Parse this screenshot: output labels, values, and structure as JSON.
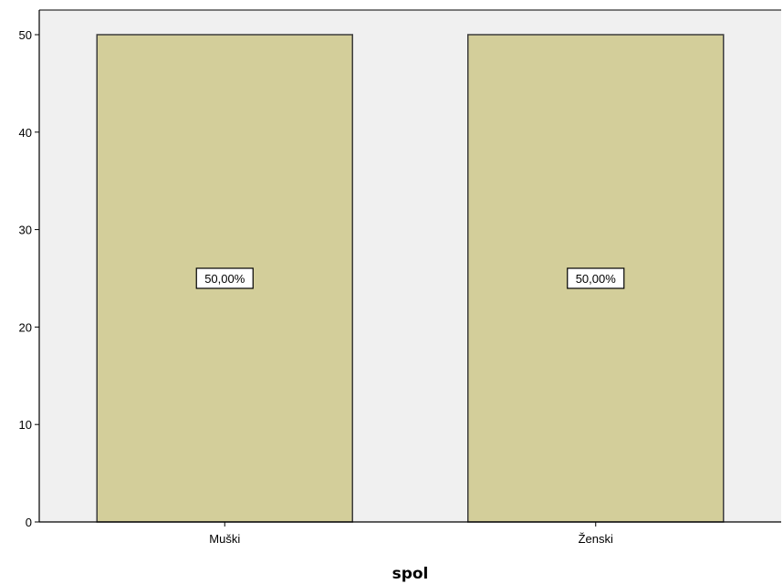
{
  "chart_data": {
    "type": "bar",
    "categories": [
      "Muški",
      "Ženski"
    ],
    "values": [
      50,
      50
    ],
    "data_labels": [
      "50,00%",
      "50,00%"
    ],
    "title": "",
    "xlabel": "spol",
    "ylabel": "",
    "ylim": [
      0,
      50
    ],
    "yticks": [
      0,
      10,
      20,
      30,
      40,
      50
    ],
    "grid": false,
    "colors": {
      "plot_background": "#f0f0f0",
      "bar_fill": "#d3ce9a",
      "bar_stroke": "#3c3c3c",
      "axis": "#000000"
    }
  }
}
